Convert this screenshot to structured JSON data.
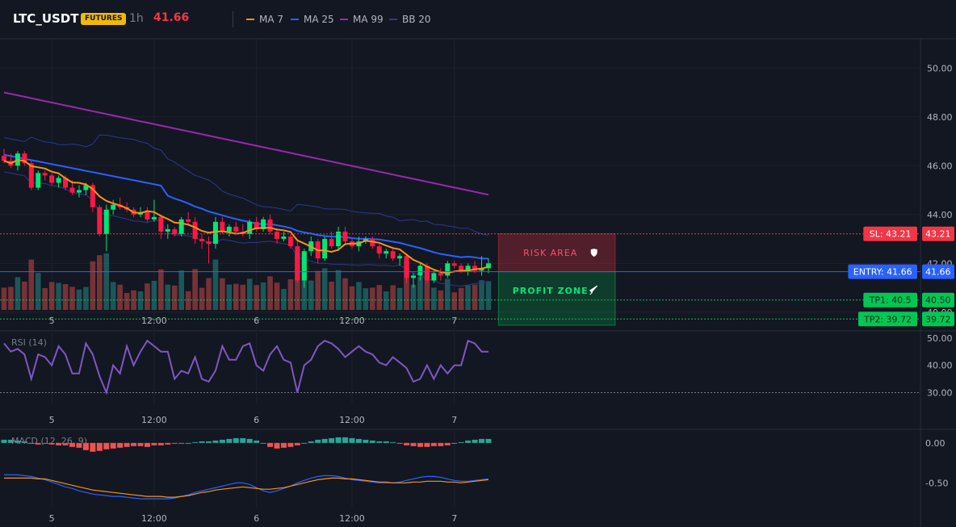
{
  "header": {
    "symbol": "LTC_USDT",
    "badge": "FUTURES",
    "timeframe": "1h",
    "price": "41.66",
    "indicators": [
      {
        "label": "MA 7",
        "color": "#f7931a"
      },
      {
        "label": "MA 25",
        "color": "#2962ff"
      },
      {
        "label": "MA 99",
        "color": "#9c27b0"
      },
      {
        "label": "BB 20",
        "color": "#2a3a8c"
      }
    ]
  },
  "chart_data": [
    {
      "type": "candlestick",
      "x_ticks": [
        "5",
        "12:00",
        "6",
        "12:00",
        "7"
      ],
      "y_ticks": [
        50.0,
        48.0,
        46.0,
        44.0,
        42.0,
        40.0
      ],
      "ylim": [
        39.3,
        51.2
      ],
      "candles": [
        [
          46.4,
          46.7,
          46.1,
          46.2
        ],
        [
          46.2,
          46.5,
          45.9,
          46.0
        ],
        [
          46.0,
          46.6,
          45.8,
          46.5
        ],
        [
          46.5,
          46.6,
          46.0,
          46.1
        ],
        [
          46.1,
          46.2,
          45.0,
          45.1
        ],
        [
          45.1,
          45.8,
          45.0,
          45.7
        ],
        [
          45.7,
          45.8,
          45.4,
          45.6
        ],
        [
          45.6,
          45.7,
          45.2,
          45.3
        ],
        [
          45.3,
          45.6,
          45.1,
          45.5
        ],
        [
          45.5,
          45.6,
          45.0,
          45.1
        ],
        [
          45.1,
          45.4,
          44.8,
          44.9
        ],
        [
          44.9,
          45.2,
          44.7,
          45.0
        ],
        [
          45.0,
          45.3,
          44.8,
          45.2
        ],
        [
          45.2,
          45.3,
          44.1,
          44.3
        ],
        [
          44.3,
          44.4,
          43.1,
          43.2
        ],
        [
          43.2,
          44.4,
          42.5,
          44.2
        ],
        [
          44.2,
          44.6,
          44.0,
          44.4
        ],
        [
          44.4,
          44.7,
          44.2,
          44.3
        ],
        [
          44.3,
          44.5,
          44.1,
          44.2
        ],
        [
          44.2,
          44.3,
          43.9,
          44.0
        ],
        [
          44.0,
          44.3,
          43.9,
          44.1
        ],
        [
          44.1,
          44.3,
          43.7,
          43.8
        ],
        [
          43.8,
          44.6,
          43.7,
          43.9
        ],
        [
          43.9,
          44.0,
          43.0,
          43.3
        ],
        [
          43.3,
          43.6,
          43.0,
          43.4
        ],
        [
          43.4,
          43.5,
          43.1,
          43.2
        ],
        [
          43.2,
          43.9,
          43.1,
          43.8
        ],
        [
          43.8,
          44.1,
          43.6,
          43.7
        ],
        [
          43.7,
          43.9,
          42.8,
          43.0
        ],
        [
          43.0,
          43.2,
          42.6,
          42.9
        ],
        [
          42.9,
          43.1,
          42.0,
          42.8
        ],
        [
          42.8,
          43.9,
          42.6,
          43.7
        ],
        [
          43.7,
          43.9,
          43.2,
          43.3
        ],
        [
          43.3,
          43.6,
          43.1,
          43.5
        ],
        [
          43.5,
          43.7,
          43.2,
          43.3
        ],
        [
          43.3,
          43.6,
          43.1,
          43.2
        ],
        [
          43.2,
          43.8,
          43.0,
          43.7
        ],
        [
          43.7,
          43.9,
          43.3,
          43.4
        ],
        [
          43.4,
          43.9,
          43.3,
          43.8
        ],
        [
          43.8,
          44.0,
          43.2,
          43.3
        ],
        [
          43.3,
          43.4,
          42.8,
          43.0
        ],
        [
          43.0,
          43.3,
          42.9,
          43.1
        ],
        [
          43.1,
          43.2,
          42.6,
          42.7
        ],
        [
          42.7,
          42.9,
          41.2,
          41.3
        ],
        [
          41.3,
          42.6,
          41.0,
          42.5
        ],
        [
          42.5,
          43.1,
          42.3,
          42.9
        ],
        [
          42.9,
          43.0,
          42.0,
          42.2
        ],
        [
          42.2,
          43.1,
          42.1,
          43.0
        ],
        [
          43.0,
          43.3,
          42.6,
          42.7
        ],
        [
          42.7,
          43.5,
          42.5,
          43.3
        ],
        [
          43.3,
          43.5,
          42.8,
          42.9
        ],
        [
          42.9,
          43.0,
          42.6,
          42.7
        ],
        [
          42.7,
          43.1,
          42.5,
          42.9
        ],
        [
          42.9,
          43.1,
          42.8,
          43.0
        ],
        [
          43.0,
          43.1,
          42.6,
          42.7
        ],
        [
          42.7,
          42.8,
          42.2,
          42.4
        ],
        [
          42.4,
          42.6,
          42.2,
          42.5
        ],
        [
          42.5,
          42.6,
          42.1,
          42.2
        ],
        [
          42.2,
          42.4,
          41.9,
          42.3
        ],
        [
          42.3,
          42.4,
          41.2,
          41.4
        ],
        [
          41.4,
          41.6,
          41.0,
          41.5
        ],
        [
          41.5,
          42.0,
          41.3,
          41.9
        ],
        [
          41.9,
          42.0,
          41.2,
          41.3
        ],
        [
          41.3,
          41.7,
          41.2,
          41.6
        ],
        [
          41.6,
          41.8,
          41.3,
          41.5
        ],
        [
          41.5,
          42.1,
          41.4,
          42.0
        ],
        [
          42.0,
          42.1,
          41.8,
          41.9
        ],
        [
          41.9,
          42.0,
          41.6,
          41.7
        ],
        [
          41.7,
          42.0,
          41.5,
          41.9
        ],
        [
          41.9,
          42.1,
          41.6,
          41.7
        ],
        [
          41.7,
          42.3,
          41.5,
          41.8
        ],
        [
          41.8,
          42.2,
          41.6,
          42.0
        ]
      ],
      "levels": {
        "sl": {
          "label": "SL: 43.21",
          "value": 43.21,
          "color": "#f23645"
        },
        "entry": {
          "label": "ENTRY: 41.66",
          "value": 41.66,
          "color": "#2962ff"
        },
        "tp1": {
          "label": "TP1: 40.5",
          "value": 40.5,
          "color": "#00c853"
        },
        "tp2": {
          "label": "TP2: 39.72",
          "value": 39.72,
          "color": "#00c853"
        }
      },
      "zones": {
        "risk": "RISK AREA",
        "profit": "PROFIT ZONE"
      }
    },
    {
      "type": "line",
      "title": "RSI (14)",
      "y_ticks": [
        50.0,
        40.0,
        30.0
      ],
      "ylim": [
        26,
        52
      ],
      "values": [
        48,
        45,
        46,
        44,
        35,
        44,
        43,
        40,
        47,
        44,
        37,
        37,
        48,
        44,
        36,
        30,
        40,
        37,
        47,
        40,
        45,
        49,
        47,
        45,
        45,
        35,
        38,
        37,
        43,
        35,
        34,
        38,
        47,
        42,
        42,
        47,
        48,
        40,
        38,
        44,
        47,
        42,
        41,
        30,
        40,
        42,
        47,
        49,
        48,
        46,
        43,
        45,
        47,
        45,
        44,
        41,
        40,
        43,
        41,
        39,
        34,
        35,
        40,
        35,
        40,
        37,
        40,
        40,
        49,
        48,
        45,
        45
      ]
    },
    {
      "type": "bar",
      "title": "MACD (12, 26, 9)",
      "y_ticks": [
        0.0,
        -0.5
      ],
      "ylim": [
        -0.8,
        0.15
      ],
      "histogram": [
        0.04,
        0.04,
        0.03,
        0.02,
        -0.01,
        -0.02,
        -0.01,
        -0.02,
        -0.03,
        -0.03,
        -0.05,
        -0.06,
        -0.09,
        -0.11,
        -0.1,
        -0.08,
        -0.07,
        -0.06,
        -0.05,
        -0.04,
        -0.04,
        -0.05,
        -0.03,
        -0.03,
        -0.02,
        -0.01,
        -0.01,
        0.0,
        0.01,
        0.02,
        0.02,
        0.03,
        0.04,
        0.05,
        0.06,
        0.06,
        0.05,
        0.03,
        -0.01,
        -0.05,
        -0.07,
        -0.06,
        -0.05,
        -0.03,
        0.0,
        0.02,
        0.04,
        0.05,
        0.06,
        0.07,
        0.07,
        0.06,
        0.05,
        0.04,
        0.03,
        0.02,
        0.02,
        0.01,
        -0.01,
        -0.03,
        -0.04,
        -0.05,
        -0.05,
        -0.04,
        -0.04,
        -0.03,
        -0.01,
        0.01,
        0.03,
        0.04,
        0.05,
        0.05
      ],
      "macd": [
        -0.4,
        -0.4,
        -0.4,
        -0.41,
        -0.42,
        -0.44,
        -0.46,
        -0.49,
        -0.52,
        -0.55,
        -0.57,
        -0.6,
        -0.62,
        -0.64,
        -0.65,
        -0.66,
        -0.67,
        -0.67,
        -0.68,
        -0.69,
        -0.7,
        -0.7,
        -0.7,
        -0.7,
        -0.7,
        -0.69,
        -0.67,
        -0.65,
        -0.62,
        -0.6,
        -0.58,
        -0.56,
        -0.54,
        -0.52,
        -0.5,
        -0.5,
        -0.52,
        -0.56,
        -0.6,
        -0.62,
        -0.6,
        -0.57,
        -0.54,
        -0.5,
        -0.47,
        -0.44,
        -0.42,
        -0.41,
        -0.41,
        -0.42,
        -0.44,
        -0.46,
        -0.47,
        -0.48,
        -0.49,
        -0.5,
        -0.5,
        -0.5,
        -0.49,
        -0.47,
        -0.45,
        -0.43,
        -0.42,
        -0.42,
        -0.43,
        -0.45,
        -0.47,
        -0.48,
        -0.48,
        -0.47,
        -0.46,
        -0.45
      ],
      "signal": [
        -0.44,
        -0.44,
        -0.44,
        -0.44,
        -0.44,
        -0.45,
        -0.45,
        -0.47,
        -0.49,
        -0.51,
        -0.53,
        -0.55,
        -0.57,
        -0.59,
        -0.6,
        -0.61,
        -0.62,
        -0.63,
        -0.64,
        -0.65,
        -0.66,
        -0.67,
        -0.67,
        -0.67,
        -0.68,
        -0.68,
        -0.67,
        -0.66,
        -0.64,
        -0.62,
        -0.61,
        -0.59,
        -0.58,
        -0.57,
        -0.56,
        -0.55,
        -0.56,
        -0.57,
        -0.58,
        -0.58,
        -0.57,
        -0.56,
        -0.54,
        -0.52,
        -0.5,
        -0.48,
        -0.46,
        -0.45,
        -0.44,
        -0.44,
        -0.45,
        -0.45,
        -0.46,
        -0.47,
        -0.48,
        -0.49,
        -0.49,
        -0.5,
        -0.5,
        -0.5,
        -0.49,
        -0.49,
        -0.48,
        -0.48,
        -0.48,
        -0.49,
        -0.49,
        -0.5,
        -0.49,
        -0.48,
        -0.47,
        -0.46
      ]
    }
  ]
}
